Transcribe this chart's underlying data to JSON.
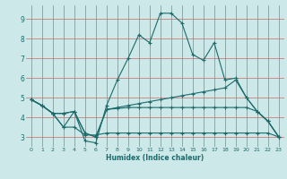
{
  "title": "",
  "xlabel": "Humidex (Indice chaleur)",
  "bg_color": "#cce8e8",
  "grid_color": "#cc6666",
  "line_color": "#1a6b6b",
  "xlim": [
    -0.5,
    23.5
  ],
  "ylim": [
    2.5,
    9.7
  ],
  "xticks": [
    0,
    1,
    2,
    3,
    4,
    5,
    6,
    7,
    8,
    9,
    10,
    11,
    12,
    13,
    14,
    15,
    16,
    17,
    18,
    19,
    20,
    21,
    22,
    23
  ],
  "yticks": [
    3,
    4,
    5,
    6,
    7,
    8,
    9
  ],
  "series": [
    [
      4.9,
      4.6,
      4.2,
      3.5,
      4.3,
      2.8,
      2.7,
      4.6,
      5.9,
      7.0,
      8.2,
      7.8,
      9.3,
      9.3,
      8.8,
      7.2,
      6.9,
      7.8,
      5.9,
      6.0,
      5.0,
      4.3,
      3.8,
      3.0
    ],
    [
      4.9,
      4.6,
      4.2,
      4.2,
      4.3,
      3.2,
      3.0,
      4.4,
      4.5,
      4.6,
      4.7,
      4.8,
      4.9,
      5.0,
      5.1,
      5.2,
      5.3,
      5.4,
      5.5,
      5.9,
      5.0,
      4.3,
      3.8,
      3.0
    ],
    [
      4.9,
      4.6,
      4.2,
      4.2,
      4.3,
      3.2,
      3.0,
      4.4,
      4.45,
      4.5,
      4.5,
      4.5,
      4.5,
      4.5,
      4.5,
      4.5,
      4.5,
      4.5,
      4.5,
      4.5,
      4.5,
      4.3,
      3.8,
      3.0
    ],
    [
      4.9,
      4.6,
      4.2,
      3.5,
      3.5,
      3.1,
      3.1,
      3.2,
      3.2,
      3.2,
      3.2,
      3.2,
      3.2,
      3.2,
      3.2,
      3.2,
      3.2,
      3.2,
      3.2,
      3.2,
      3.2,
      3.2,
      3.2,
      3.0
    ]
  ]
}
